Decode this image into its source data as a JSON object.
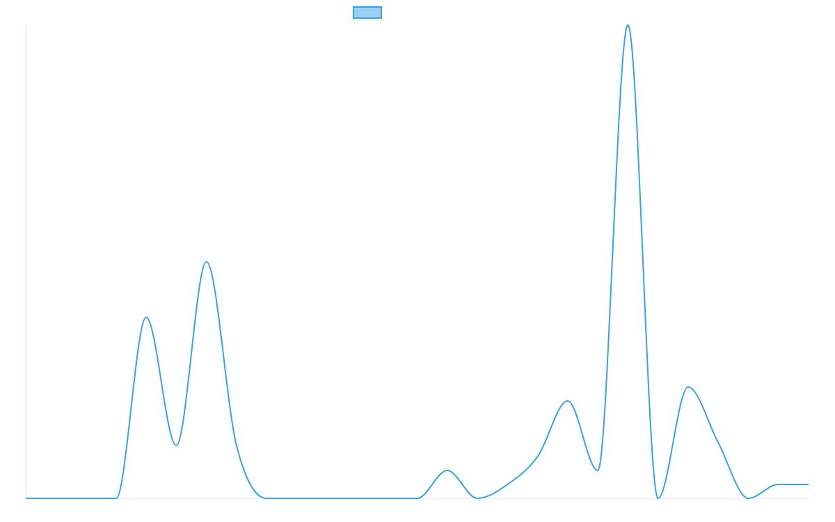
{
  "chart_data": {
    "type": "line",
    "title": "",
    "xlabel": "",
    "ylabel": "",
    "grid": false,
    "legend": "top-center",
    "colors": {
      "line": "#36a2eb",
      "legend_fill": "#9ad0f5",
      "axis": "#e6e6e6"
    },
    "x": [
      0,
      1,
      2,
      3,
      4,
      5,
      6,
      7,
      8,
      9,
      10,
      11,
      12,
      13,
      14,
      15,
      16,
      17,
      18,
      19,
      20,
      21,
      22,
      23,
      24,
      25,
      26
    ],
    "ylim": [
      0,
      17
    ],
    "series": [
      {
        "values": [
          0,
          0,
          0,
          0,
          6.5,
          1.9,
          8.5,
          1.9,
          0,
          0,
          0,
          0,
          0,
          0,
          1,
          0,
          0.5,
          1.5,
          3.5,
          1,
          17,
          0,
          4,
          2,
          0,
          0.5,
          0.5
        ],
        "color": "#36a2eb"
      }
    ]
  }
}
